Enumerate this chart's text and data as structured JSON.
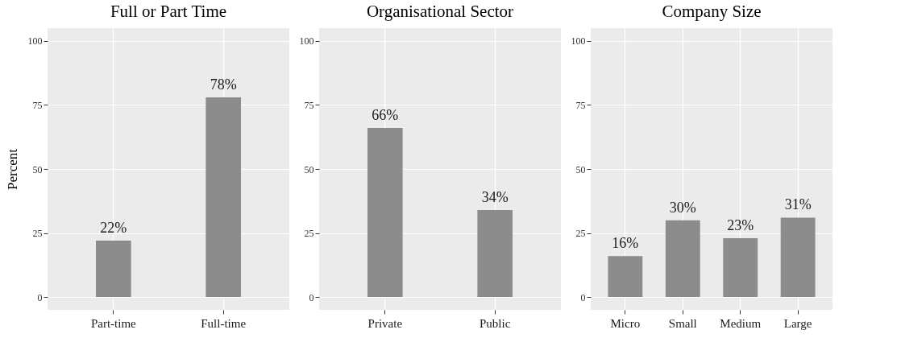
{
  "chart_data": [
    {
      "type": "bar",
      "title": "Full or Part Time",
      "ylabel": "Percent",
      "categories": [
        "Part-time",
        "Full-time"
      ],
      "values": [
        22,
        78
      ],
      "value_labels": [
        "22%",
        "78%"
      ],
      "color": "#8c8c8c",
      "ylim": [
        -5,
        105
      ],
      "yticks": [
        0,
        25,
        50,
        75,
        100
      ],
      "grid": true
    },
    {
      "type": "bar",
      "title": "Organisational Sector",
      "categories": [
        "Private",
        "Public"
      ],
      "values": [
        66,
        34
      ],
      "value_labels": [
        "66%",
        "34%"
      ],
      "color": "#8c8c8c",
      "ylim": [
        -5,
        105
      ],
      "yticks": [
        0,
        25,
        50,
        75,
        100
      ],
      "grid": true
    },
    {
      "type": "bar",
      "title": "Company Size",
      "categories": [
        "Micro",
        "Small",
        "Medium",
        "Large"
      ],
      "values": [
        16,
        30,
        23,
        31
      ],
      "value_labels": [
        "16%",
        "30%",
        "23%",
        "31%"
      ],
      "color": "#8c8c8c",
      "ylim": [
        -5,
        105
      ],
      "yticks": [
        0,
        25,
        50,
        75,
        100
      ],
      "grid": true
    }
  ]
}
